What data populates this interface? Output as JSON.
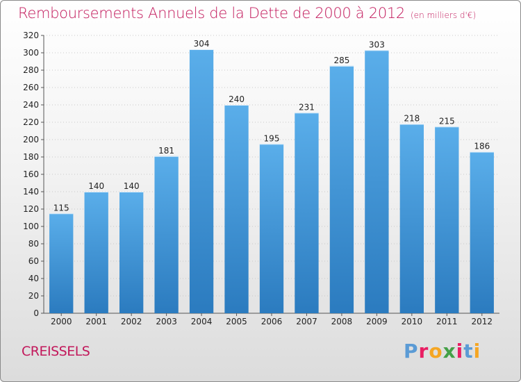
{
  "header": {
    "title": "Remboursements Annuels de la Dette de 2000 à 2012",
    "unit": "(en milliers d'€)"
  },
  "footer": {
    "city": "CREISSELS",
    "logo_letters": [
      "P",
      "r",
      "o",
      "x",
      "i",
      "t",
      "i"
    ],
    "logo_colors": [
      "#5b9bd5",
      "#e91e63",
      "#f5a623",
      "#43a047",
      "#e91e63",
      "#5b9bd5",
      "#f5a623"
    ]
  },
  "chart_data": {
    "type": "bar",
    "title": "Remboursements Annuels de la Dette de 2000 à 2012",
    "categories": [
      "2000",
      "2001",
      "2002",
      "2003",
      "2004",
      "2005",
      "2006",
      "2007",
      "2008",
      "2009",
      "2010",
      "2011",
      "2012"
    ],
    "values": [
      115,
      140,
      140,
      181,
      304,
      240,
      195,
      231,
      285,
      303,
      218,
      215,
      186
    ],
    "value_labels": [
      "115",
      "140",
      "140",
      "181",
      "304",
      "240",
      "195",
      "231",
      "285",
      "303",
      "218",
      "215",
      "186"
    ],
    "ylim": [
      0,
      320
    ],
    "yticks": [
      0,
      20,
      40,
      60,
      80,
      100,
      120,
      140,
      160,
      180,
      200,
      220,
      240,
      260,
      280,
      300,
      320
    ],
    "ytick_labels": [
      "0",
      "20",
      "40",
      "60",
      "80",
      "100",
      "120",
      "140",
      "160",
      "180",
      "200",
      "220",
      "240",
      "260",
      "280",
      "300",
      "320"
    ],
    "grid": true,
    "bar_color_top": "#5aaeea",
    "bar_color_bottom": "#2b7bbf"
  }
}
